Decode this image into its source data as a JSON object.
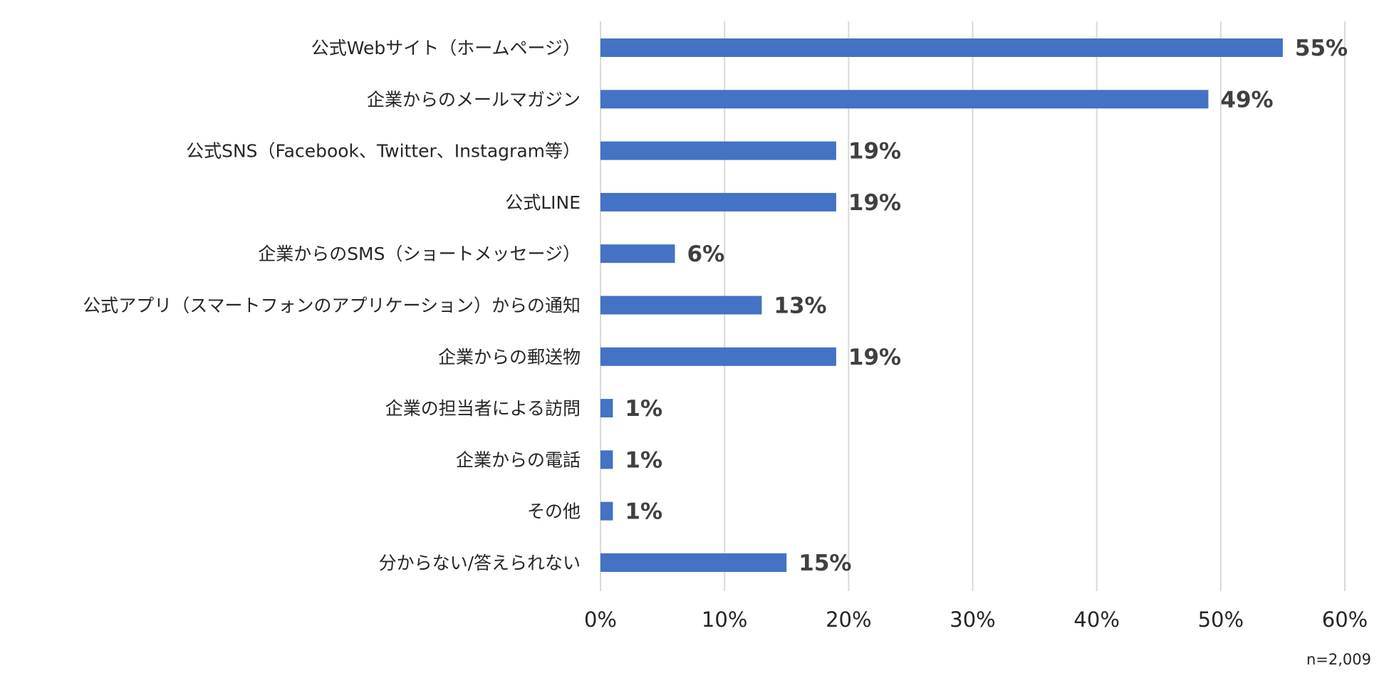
{
  "chart_data": {
    "type": "bar",
    "orientation": "horizontal",
    "categories": [
      "公式Webサイト（ホームページ）",
      "企業からのメールマガジン",
      "公式SNS（Facebook、Twitter、Instagram等）",
      "公式LINE",
      "企業からのSMS（ショートメッセージ）",
      "公式アプリ（スマートフォンのアプリケーション）からの通知",
      "企業からの郵送物",
      "企業の担当者による訪問",
      "企業からの電話",
      "その他",
      "分からない/答えられない"
    ],
    "values": [
      55,
      49,
      19,
      19,
      6,
      13,
      19,
      1,
      1,
      1,
      15
    ],
    "value_labels": [
      "55%",
      "49%",
      "19%",
      "19%",
      "6%",
      "13%",
      "19%",
      "1%",
      "1%",
      "1%",
      "15%"
    ],
    "xlim": [
      0,
      60
    ],
    "xticks": [
      0,
      10,
      20,
      30,
      40,
      50,
      60
    ],
    "xtick_labels": [
      "0%",
      "10%",
      "20%",
      "30%",
      "40%",
      "50%",
      "60%"
    ],
    "grid": "vertical",
    "bar_color": "#4472c4",
    "note": "n=2,009"
  }
}
